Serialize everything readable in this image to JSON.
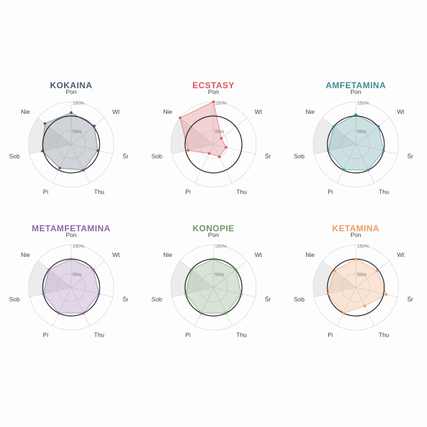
{
  "chart_data": [
    {
      "type": "radar",
      "title": "KOKAINA",
      "color": "#4a5a6e",
      "axes": [
        "Pon",
        "Wt",
        "Śr",
        "Thu",
        "Pi",
        "Sob",
        "Nie"
      ],
      "ticks": [
        "50%",
        "150%"
      ],
      "rmax": 150,
      "values": [
        112,
        104,
        96,
        100,
        92,
        104,
        118
      ],
      "baseline": 100,
      "shaded_sector": [
        "Sob",
        "Nie"
      ]
    },
    {
      "type": "radar",
      "title": "ECSTASY",
      "color": "#d9535a",
      "axes": [
        "Pon",
        "Wt",
        "Śr",
        "Thu",
        "Pi",
        "Sob",
        "Nie"
      ],
      "ticks": [
        "50%",
        "150%"
      ],
      "rmax": 150,
      "values": [
        150,
        35,
        45,
        48,
        35,
        92,
        150
      ],
      "baseline": 100,
      "shaded_sector": [
        "Sob",
        "Nie"
      ]
    },
    {
      "type": "radar",
      "title": "AMFETAMINA",
      "color": "#3d8c95",
      "axes": [
        "Pon",
        "Wt",
        "Śr",
        "Thu",
        "Pi",
        "Sob",
        "Nie"
      ],
      "ticks": [
        "50%",
        "150%"
      ],
      "rmax": 150,
      "values": [
        105,
        102,
        100,
        100,
        98,
        100,
        100
      ],
      "baseline": 100,
      "shaded_sector": [
        "Sob",
        "Nie"
      ]
    },
    {
      "type": "radar",
      "title": "METAMFETAMINA",
      "color": "#8e67a8",
      "axes": [
        "Pon",
        "Wt",
        "Śr",
        "Thu",
        "Pi",
        "Sob",
        "Nie"
      ],
      "ticks": [
        "50%",
        "150%"
      ],
      "rmax": 150,
      "values": [
        100,
        100,
        100,
        100,
        100,
        100,
        100
      ],
      "baseline": 100,
      "shaded_sector": [
        "Sob",
        "Nie"
      ]
    },
    {
      "type": "radar",
      "title": "KONOPIE",
      "color": "#6c9464",
      "axes": [
        "Pon",
        "Wt",
        "Śr",
        "Thu",
        "Pi",
        "Sob",
        "Nie"
      ],
      "ticks": [
        "50%",
        "150%"
      ],
      "rmax": 150,
      "values": [
        100,
        100,
        100,
        100,
        100,
        100,
        100
      ],
      "baseline": 100,
      "shaded_sector": [
        "Sob",
        "Nie"
      ]
    },
    {
      "type": "radar",
      "title": "KETAMINA",
      "color": "#ef9a62",
      "axes": [
        "Pon",
        "Wt",
        "Śr",
        "Thu",
        "Pi",
        "Sob",
        "Nie"
      ],
      "ticks": [
        "50%",
        "150%"
      ],
      "rmax": 150,
      "values": [
        100,
        95,
        110,
        72,
        100,
        102,
        95
      ],
      "baseline": 100,
      "shaded_sector": [
        "Sob",
        "Nie"
      ]
    }
  ]
}
